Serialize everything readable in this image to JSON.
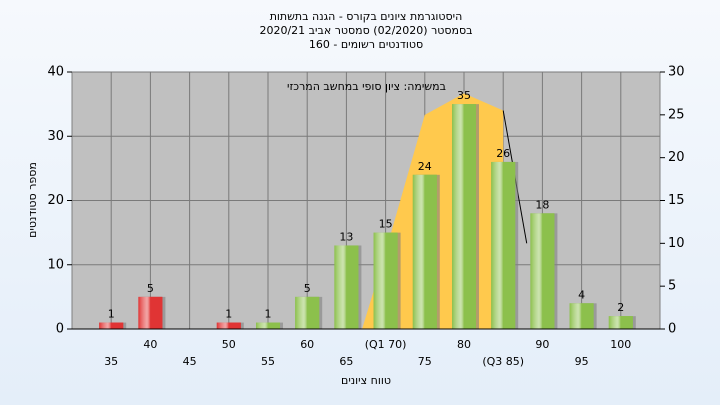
{
  "chart_data": {
    "type": "bar",
    "title_lines": [
      "היסטוגרמת ציונים בקורס - הגנה בתשתות",
      "בסמסטר  (02/2020)  סמסטר אביב 2020/21",
      "סטודנטים רשומים - 160"
    ],
    "annotation": "במשימה: ציון סופי במחשב המרכזי",
    "xlabel": "טווח ציונים",
    "ylabel": "מספר סטודנטים",
    "xlim": [
      30,
      105
    ],
    "xticks": [
      35,
      40,
      45,
      50,
      55,
      60,
      65,
      {
        "value": 70,
        "label": "(Q1 70)"
      },
      75,
      80,
      {
        "value": 85,
        "label": "(Q3 85)"
      },
      90,
      95,
      100
    ],
    "ylim": [
      0,
      40
    ],
    "yticks": [
      0,
      10,
      20,
      30,
      40
    ],
    "y2lim": [
      0,
      30
    ],
    "y2ticks": [
      0,
      5,
      10,
      15,
      20,
      25,
      30
    ],
    "grid": true,
    "series": [
      {
        "type": "area",
        "axis": "y2",
        "color": "#ffc94d",
        "x": [
          67,
          70,
          75,
          80,
          85
        ],
        "values": [
          0,
          9,
          25,
          27.5,
          25.5
        ]
      },
      {
        "type": "line",
        "axis": "y2",
        "color": "#000000",
        "x": [
          85,
          88
        ],
        "values": [
          25.5,
          10
        ]
      },
      {
        "type": "bar",
        "x": [
          35,
          40,
          45,
          50,
          55,
          60,
          65,
          70,
          75,
          80,
          85,
          90,
          95,
          100
        ],
        "values": [
          1,
          5,
          0,
          1,
          1,
          5,
          13,
          15,
          24,
          35,
          26,
          18,
          4,
          2
        ],
        "colors": [
          "#e03434",
          "#e03434",
          "#e03434",
          "#e03434",
          "#8cc04c",
          "#8cc04c",
          "#8cc04c",
          "#8cc04c",
          "#8cc04c",
          "#8cc04c",
          "#8cc04c",
          "#8cc04c",
          "#8cc04c",
          "#8cc04c"
        ]
      }
    ]
  }
}
